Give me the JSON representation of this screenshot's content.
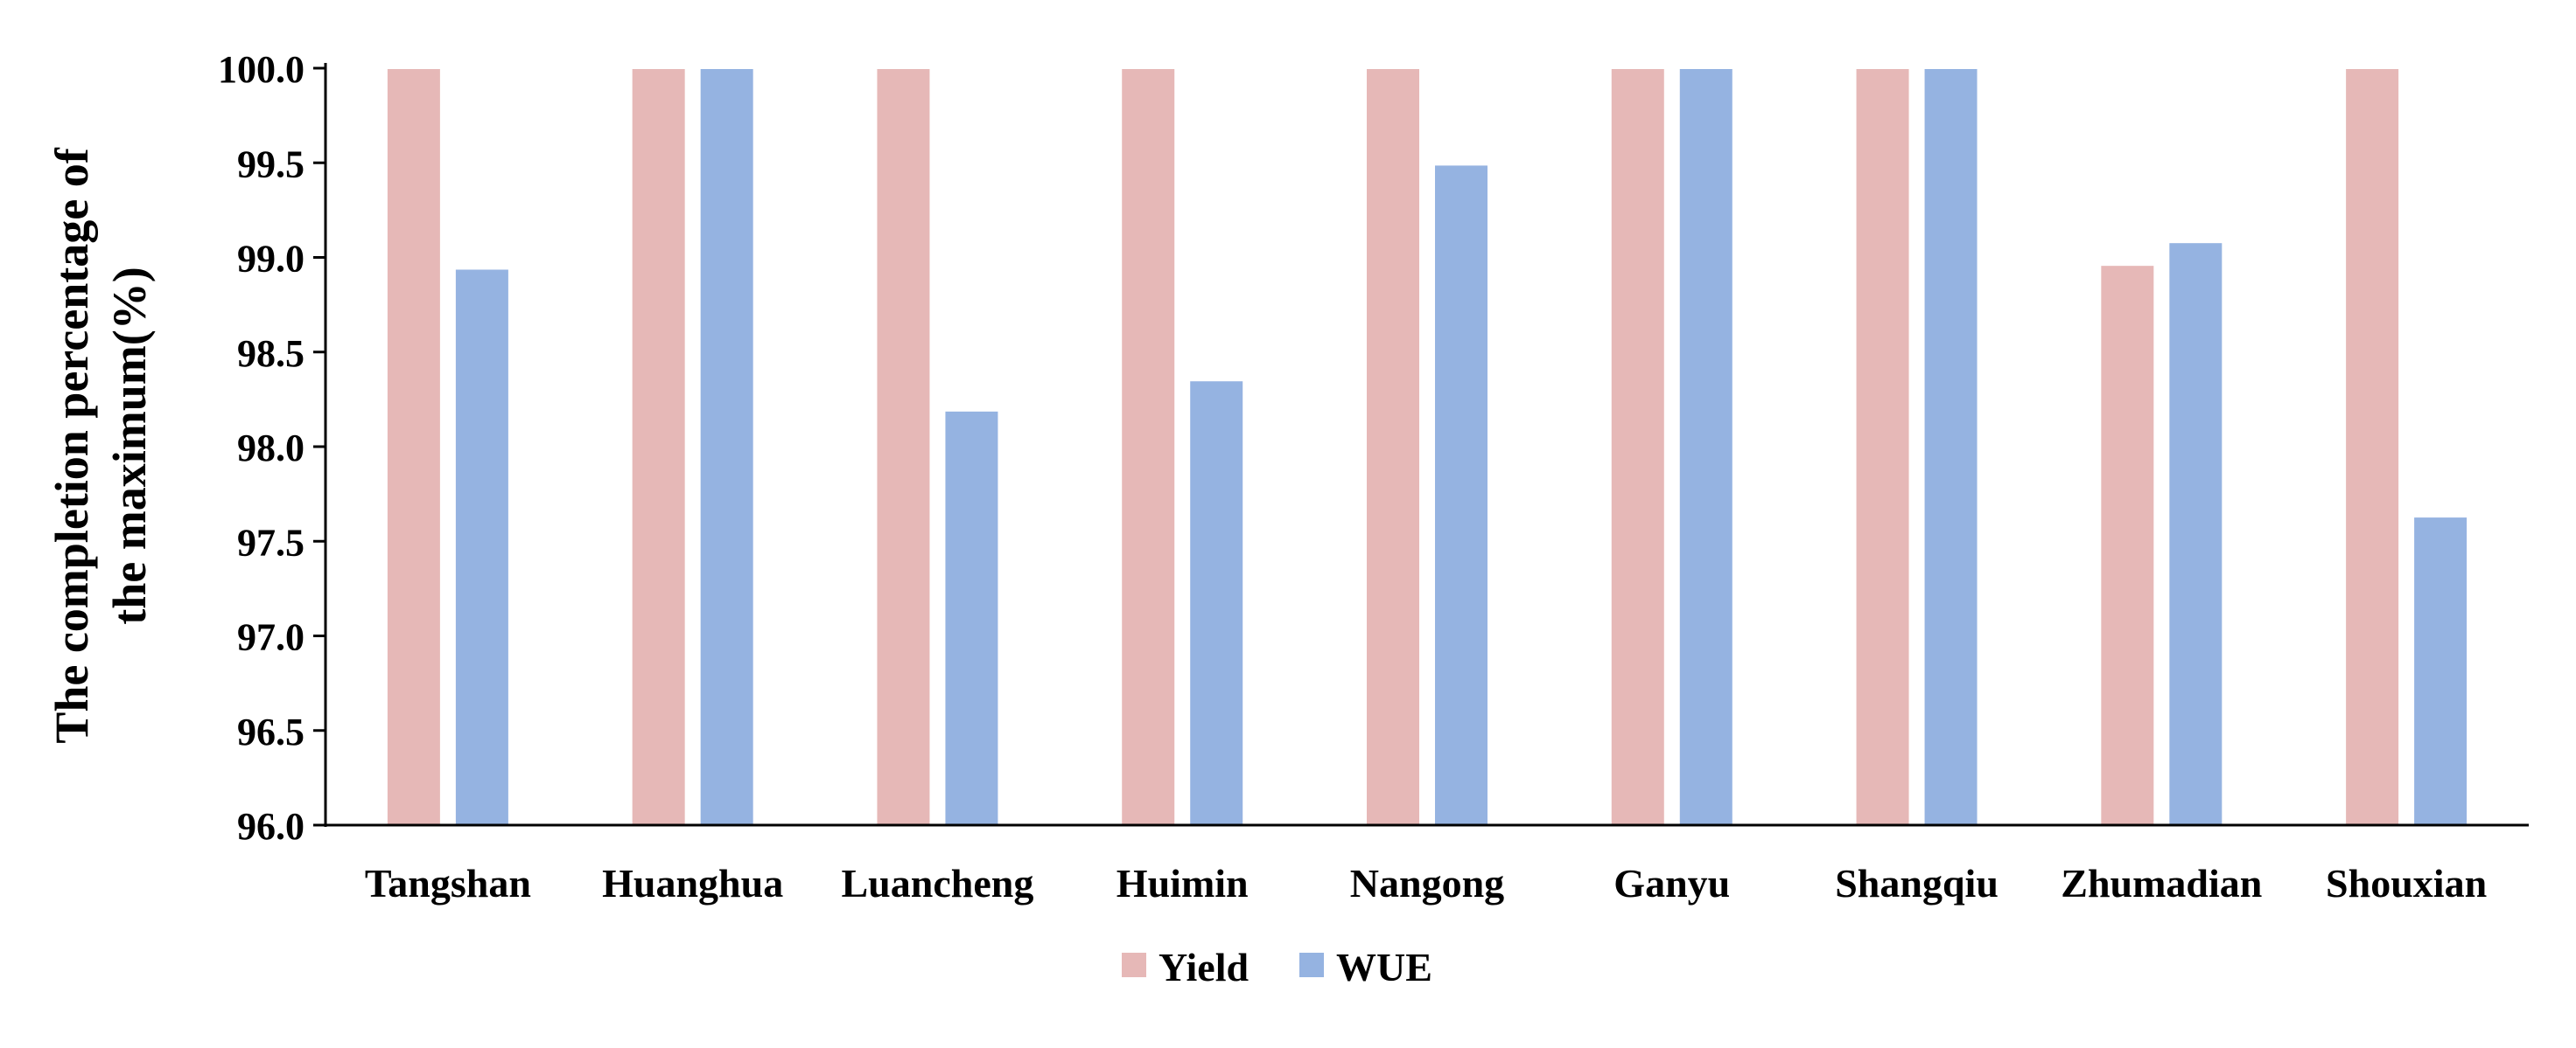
{
  "chart_data": {
    "type": "bar",
    "title": "",
    "xlabel": "",
    "ylabel_lines": [
      "The completion percentage of",
      "the maximum(%)"
    ],
    "categories": [
      "Tangshan",
      "Huanghua",
      "Luancheng",
      "Huimin",
      "Nangong",
      "Ganyu",
      "Shangqiu",
      "Zhumadian",
      "Shouxian"
    ],
    "series": [
      {
        "name": "Yield",
        "color": "#e6b8b7",
        "values": [
          100.0,
          100.0,
          100.0,
          100.0,
          100.0,
          100.0,
          100.0,
          98.96,
          100.0
        ]
      },
      {
        "name": "WUE",
        "color": "#95b3e1",
        "values": [
          98.94,
          100.0,
          98.19,
          98.35,
          99.49,
          100.0,
          100.0,
          99.08,
          97.63
        ]
      }
    ],
    "ylim": [
      96.0,
      100.0
    ],
    "yticks": [
      "96.0",
      "96.5",
      "97.0",
      "97.5",
      "98.0",
      "98.5",
      "99.0",
      "99.5",
      "100.0"
    ],
    "grid": false,
    "legend_position": "bottom-center"
  }
}
